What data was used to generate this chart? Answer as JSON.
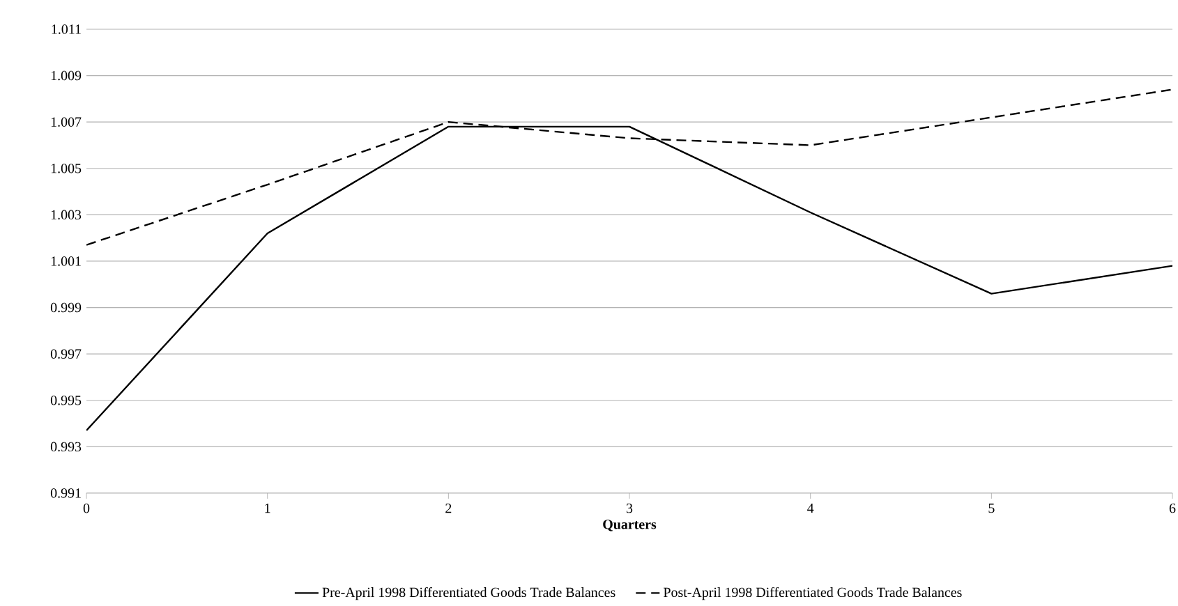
{
  "chart_data": {
    "type": "line",
    "xlabel": "Quarters",
    "x": [
      0,
      1,
      2,
      3,
      4,
      5,
      6
    ],
    "xlim": [
      0,
      6
    ],
    "xticks": [
      0,
      1,
      2,
      3,
      4,
      5,
      6
    ],
    "ylim": [
      0.991,
      1.011
    ],
    "yticks": [
      0.991,
      0.993,
      0.995,
      0.997,
      0.999,
      1.001,
      1.003,
      1.005,
      1.007,
      1.009,
      1.011
    ],
    "grid": "y",
    "legend": "bottom",
    "series": [
      {
        "name": "Pre-April 1998 Differentiated Goods Trade Balances",
        "color": "#000000",
        "line_style": "solid",
        "values": [
          0.9937,
          1.0022,
          1.0068,
          1.0068,
          1.0031,
          0.9996,
          1.0008
        ]
      },
      {
        "name": "Post-April 1998 Differentiated Goods Trade Balances",
        "color": "#000000",
        "line_style": "dashed",
        "values": [
          1.0017,
          1.0043,
          1.007,
          1.0063,
          1.006,
          1.0072,
          1.0084
        ]
      }
    ]
  }
}
